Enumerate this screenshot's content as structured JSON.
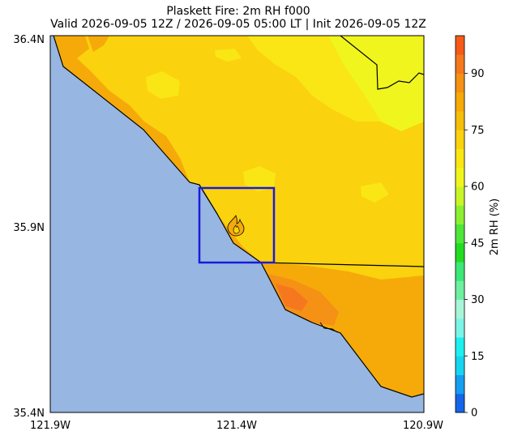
{
  "title": "Plaskett Fire: 2m RH f000",
  "subtitle": "Valid 2026-09-05 12Z / 2026-09-05 05:00 LT | Init 2026-09-05 12Z",
  "map": {
    "lat_ticks": [
      "36.4N",
      "35.9N",
      "35.4N"
    ],
    "lon_ticks": [
      "121.9W",
      "121.4W",
      "120.9W"
    ],
    "extent": {
      "lon": [
        -121.9,
        -120.9
      ],
      "lat": [
        35.4,
        36.4
      ]
    },
    "ocean_color": "#97b6e1",
    "box_color": "#1a1adc",
    "fire_marker": "flame-icon"
  },
  "colorbar": {
    "label": "2m RH (%)",
    "ticks": [
      "0",
      "15",
      "30",
      "45",
      "60",
      "75",
      "90"
    ],
    "range": [
      0,
      100
    ],
    "levels": [
      0,
      5,
      10,
      15,
      20,
      25,
      30,
      35,
      40,
      45,
      50,
      55,
      60,
      65,
      70,
      75,
      80,
      85,
      90,
      95,
      100
    ],
    "colors": [
      "#1565e8",
      "#169ef0",
      "#18d4f0",
      "#1ef0f0",
      "#7cf5e6",
      "#a8f5d8",
      "#6ef0a0",
      "#3ce878",
      "#22dc22",
      "#4ee63a",
      "#8cf032",
      "#c8f528",
      "#f0f51e",
      "#fae614",
      "#fad20e",
      "#f5be0a",
      "#f5aa0a",
      "#f59114",
      "#f5781e",
      "#f55a19",
      "#f52d0f"
    ]
  }
}
